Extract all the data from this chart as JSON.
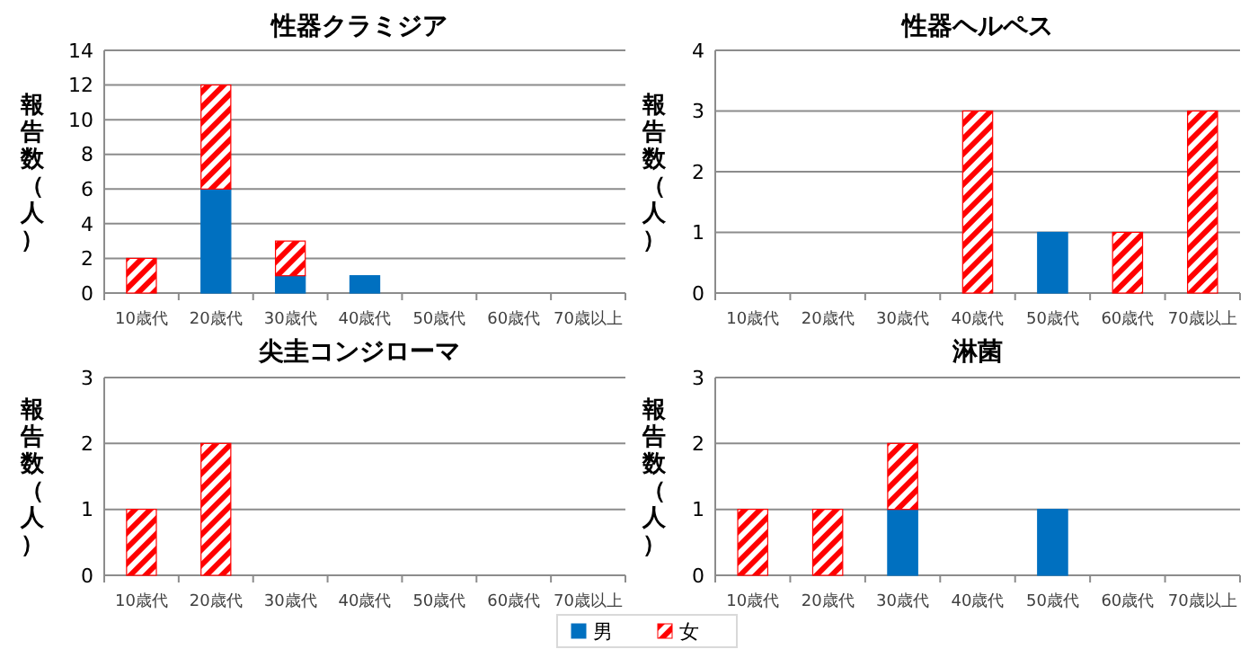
{
  "chart_data": [
    {
      "type": "bar",
      "title": "性器クラミジア",
      "ylabel": "報告数（人）",
      "categories": [
        "10歳代",
        "20歳代",
        "30歳代",
        "40歳代",
        "50歳代",
        "60歳代",
        "70歳以上"
      ],
      "stacked": true,
      "ylim": [
        0,
        14
      ],
      "yticks": [
        0,
        2,
        4,
        6,
        8,
        10,
        12,
        14
      ],
      "grid": "y",
      "series": [
        {
          "color": "#0070c0",
          "values": [
            0,
            6,
            1,
            1,
            0,
            0,
            0
          ]
        },
        {
          "color": "#ff0000",
          "values": [
            2,
            6,
            2,
            0,
            0,
            0,
            0
          ]
        }
      ]
    },
    {
      "type": "bar",
      "title": "性器ヘルペス",
      "ylabel": "報告数（人）",
      "categories": [
        "10歳代",
        "20歳代",
        "30歳代",
        "40歳代",
        "50歳代",
        "60歳代",
        "70歳以上"
      ],
      "stacked": true,
      "ylim": [
        0,
        4
      ],
      "yticks": [
        0,
        1,
        2,
        3,
        4
      ],
      "grid": "y",
      "series": [
        {
          "color": "#0070c0",
          "values": [
            0,
            0,
            0,
            0,
            1,
            0,
            0
          ]
        },
        {
          "color": "#ff0000",
          "values": [
            0,
            0,
            0,
            3,
            0,
            1,
            3
          ]
        }
      ]
    },
    {
      "type": "bar",
      "title": "尖圭コンジローマ",
      "ylabel": "報告数（人）",
      "categories": [
        "10歳代",
        "20歳代",
        "30歳代",
        "40歳代",
        "50歳代",
        "60歳代",
        "70歳以上"
      ],
      "stacked": true,
      "ylim": [
        0,
        3
      ],
      "yticks": [
        0,
        1,
        2,
        3
      ],
      "grid": "y",
      "series": [
        {
          "color": "#0070c0",
          "values": [
            0,
            0,
            0,
            0,
            0,
            0,
            0
          ]
        },
        {
          "color": "#ff0000",
          "values": [
            1,
            2,
            0,
            0,
            0,
            0,
            0
          ]
        }
      ]
    },
    {
      "type": "bar",
      "title": "淋菌",
      "ylabel": "報告数（人）",
      "categories": [
        "10歳代",
        "20歳代",
        "30歳代",
        "40歳代",
        "50歳代",
        "60歳代",
        "70歳以上"
      ],
      "stacked": true,
      "ylim": [
        0,
        3
      ],
      "yticks": [
        0,
        1,
        2,
        3
      ],
      "grid": "y",
      "legend": "bottom",
      "series": [
        {
          "name": "男",
          "color": "#0070c0",
          "values": [
            0,
            0,
            1,
            0,
            1,
            0,
            0
          ]
        },
        {
          "name": "女",
          "color": "#ff0000",
          "values": [
            1,
            1,
            1,
            0,
            0,
            0,
            0
          ]
        }
      ]
    }
  ]
}
